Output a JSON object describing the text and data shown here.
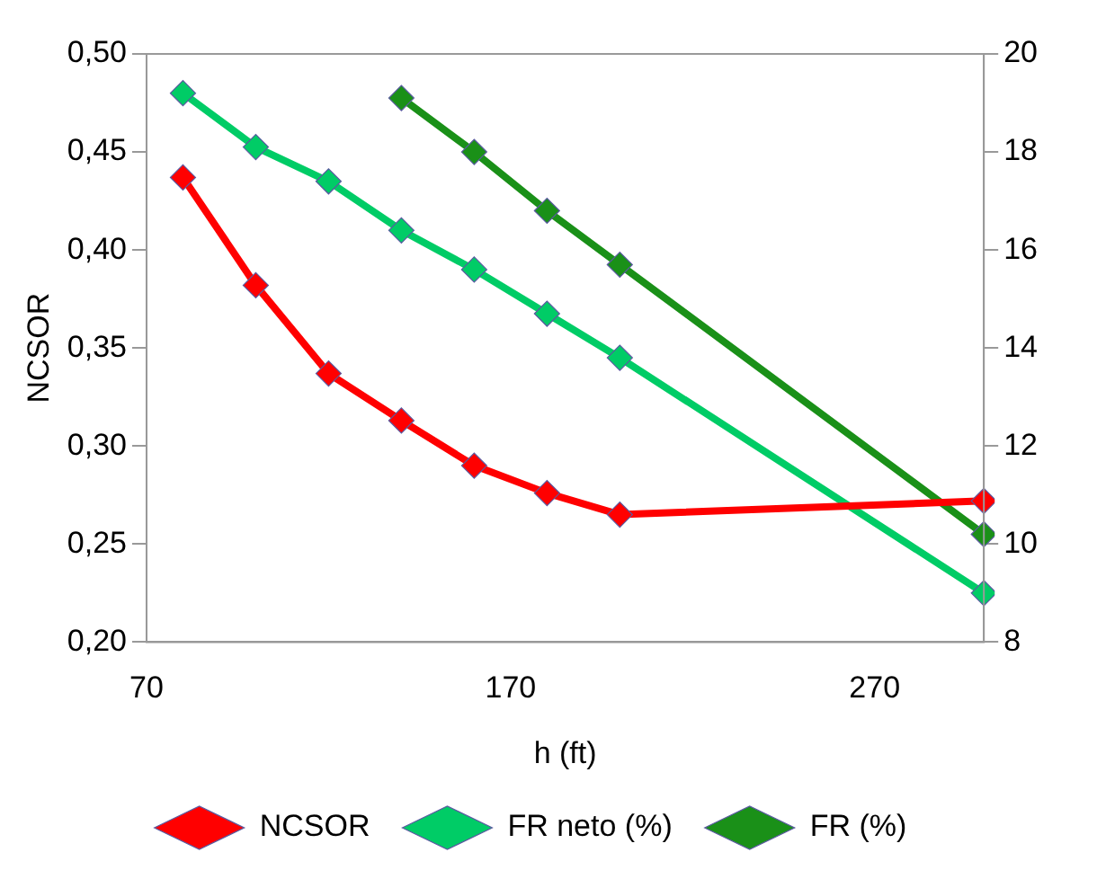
{
  "chart_data": {
    "type": "line",
    "xlabel": "h (ft)",
    "ylabel": "NCSOR",
    "x": [
      80,
      100,
      120,
      140,
      160,
      180,
      200,
      300
    ],
    "xlim": [
      70,
      300
    ],
    "xticks": [
      70,
      170,
      270
    ],
    "ylim": [
      0.2,
      0.5
    ],
    "yticks": [
      {
        "value": 0.2,
        "label": "0,20"
      },
      {
        "value": 0.25,
        "label": "0,25"
      },
      {
        "value": 0.3,
        "label": "0,30"
      },
      {
        "value": 0.35,
        "label": "0,35"
      },
      {
        "value": 0.4,
        "label": "0,40"
      },
      {
        "value": 0.45,
        "label": "0,45"
      },
      {
        "value": 0.5,
        "label": "0,50"
      }
    ],
    "y2lim": [
      8,
      20
    ],
    "y2ticks": [
      8,
      10,
      12,
      14,
      16,
      18,
      20
    ],
    "series": [
      {
        "name": "NCSOR",
        "color": "#ff0000",
        "values": [
          0.437,
          0.382,
          0.337,
          0.313,
          0.29,
          0.276,
          0.265,
          0.272
        ]
      },
      {
        "name": "FR neto (%)",
        "color": "#00cc66",
        "axis": "y2",
        "values": [
          19.2,
          18.1,
          17.4,
          16.4,
          15.6,
          14.7,
          13.8,
          9.0
        ]
      },
      {
        "name": "FR (%)",
        "color": "#1a9018",
        "axis": "y2",
        "values": [
          null,
          null,
          null,
          19.1,
          18.0,
          16.8,
          15.7,
          10.2
        ]
      }
    ],
    "marker": "diamond",
    "line_style": "solid",
    "grid": false,
    "legend": "bottom"
  }
}
